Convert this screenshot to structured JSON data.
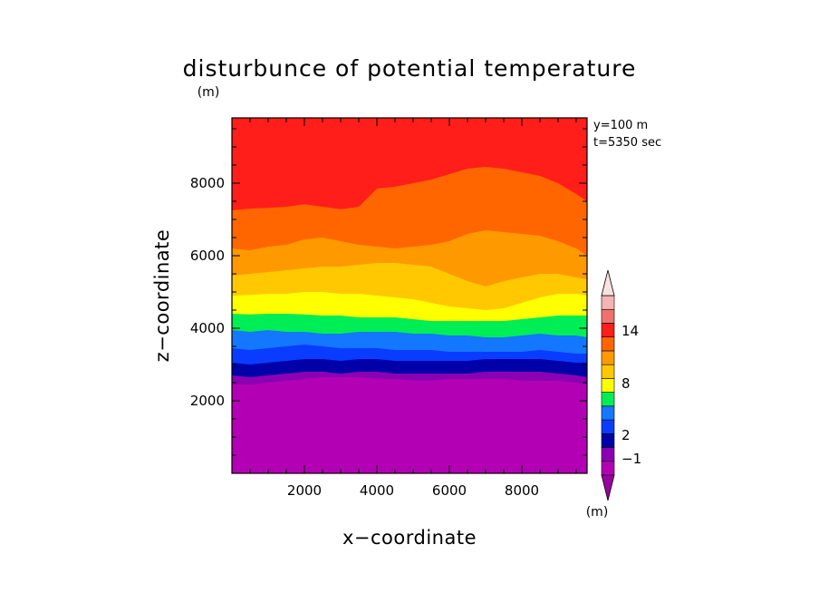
{
  "chart_data": {
    "type": "heatmap",
    "title": "disturbunce of potential temperature",
    "xlabel": "x−coordinate",
    "ylabel": "z−coordinate",
    "y_unit": "(m)",
    "colorbar_unit": "(m)",
    "info_lines": [
      "y=100 m",
      "t=5350 sec"
    ],
    "xlim": [
      0,
      9800
    ],
    "ylim": [
      0,
      9800
    ],
    "x_ticks": [
      2000,
      4000,
      6000,
      8000
    ],
    "y_ticks": [
      2000,
      4000,
      6000,
      8000
    ],
    "x_tick_labels": [
      "2000",
      "4000",
      "6000",
      "8000"
    ],
    "y_tick_labels": [
      "2000",
      "4000",
      "6000",
      "8000"
    ],
    "colorbar_tick_labels": [
      "14",
      "8",
      "2",
      "−1"
    ],
    "profile_x": [
      0,
      500,
      1000,
      1500,
      2000,
      2500,
      3000,
      3500,
      4000,
      4500,
      5000,
      5500,
      6000,
      6500,
      7000,
      7500,
      8000,
      8500,
      9000,
      9500,
      9800
    ],
    "levels": [
      {
        "color": "#ff1e19",
        "z": [
          9800,
          9800,
          9800,
          9800,
          9800,
          9800,
          9800,
          9800,
          9800,
          9800,
          9800,
          9800,
          9800,
          9800,
          9800,
          9800,
          9800,
          9800,
          9800,
          9800,
          9800
        ]
      },
      {
        "color": "#ff6600",
        "z": [
          7250,
          7300,
          7320,
          7350,
          7420,
          7350,
          7280,
          7350,
          7850,
          7900,
          8000,
          8100,
          8250,
          8400,
          8450,
          8400,
          8300,
          8200,
          8000,
          7700,
          7500
        ]
      },
      {
        "color": "#ff9900",
        "z": [
          6200,
          6150,
          6250,
          6300,
          6450,
          6500,
          6400,
          6300,
          6250,
          6200,
          6250,
          6300,
          6400,
          6600,
          6700,
          6650,
          6600,
          6550,
          6400,
          6200,
          6000
        ]
      },
      {
        "color": "#ffc800",
        "z": [
          5450,
          5500,
          5550,
          5600,
          5650,
          5700,
          5700,
          5750,
          5800,
          5800,
          5750,
          5700,
          5500,
          5300,
          5150,
          5300,
          5400,
          5500,
          5500,
          5400,
          5350
        ]
      },
      {
        "color": "#ffff00",
        "z": [
          4900,
          4920,
          4950,
          4950,
          5000,
          5000,
          4950,
          4950,
          4900,
          4850,
          4800,
          4700,
          4600,
          4550,
          4500,
          4550,
          4700,
          4850,
          4950,
          4950,
          4900
        ]
      },
      {
        "color": "#00ee55",
        "z": [
          4400,
          4380,
          4400,
          4400,
          4380,
          4350,
          4350,
          4300,
          4300,
          4300,
          4250,
          4200,
          4200,
          4200,
          4200,
          4200,
          4250,
          4300,
          4350,
          4350,
          4350
        ]
      },
      {
        "color": "#1477ff",
        "z": [
          3950,
          3900,
          3950,
          3900,
          3900,
          3850,
          3850,
          3900,
          3900,
          3900,
          3850,
          3850,
          3800,
          3800,
          3750,
          3750,
          3800,
          3850,
          3800,
          3800,
          3750
        ]
      },
      {
        "color": "#0a3cff",
        "z": [
          3450,
          3400,
          3450,
          3500,
          3550,
          3500,
          3450,
          3450,
          3450,
          3400,
          3400,
          3400,
          3350,
          3350,
          3350,
          3350,
          3350,
          3400,
          3350,
          3300,
          3300
        ]
      },
      {
        "color": "#0000a8",
        "z": [
          3050,
          3000,
          3050,
          3100,
          3150,
          3150,
          3100,
          3150,
          3150,
          3100,
          3100,
          3100,
          3100,
          3100,
          3150,
          3150,
          3150,
          3150,
          3100,
          3050,
          3050
        ]
      },
      {
        "color": "#8c00b4",
        "z": [
          2700,
          2650,
          2700,
          2750,
          2800,
          2800,
          2750,
          2800,
          2800,
          2750,
          2750,
          2750,
          2750,
          2750,
          2800,
          2800,
          2800,
          2800,
          2750,
          2700,
          2650
        ]
      },
      {
        "color": "#b400b4",
        "z": [
          2450,
          2450,
          2500,
          2550,
          2600,
          2650,
          2650,
          2650,
          2600,
          2600,
          2550,
          2550,
          2600,
          2600,
          2600,
          2600,
          2550,
          2550,
          2550,
          2500,
          2450
        ]
      }
    ],
    "colorbar_colors": [
      "#b400b4",
      "#8c00b4",
      "#0000a8",
      "#0a3cff",
      "#1477ff",
      "#00ee55",
      "#ffff00",
      "#ffc800",
      "#ff9900",
      "#ff6600",
      "#ff1e19",
      "#f07070",
      "#f5b4b4"
    ]
  }
}
